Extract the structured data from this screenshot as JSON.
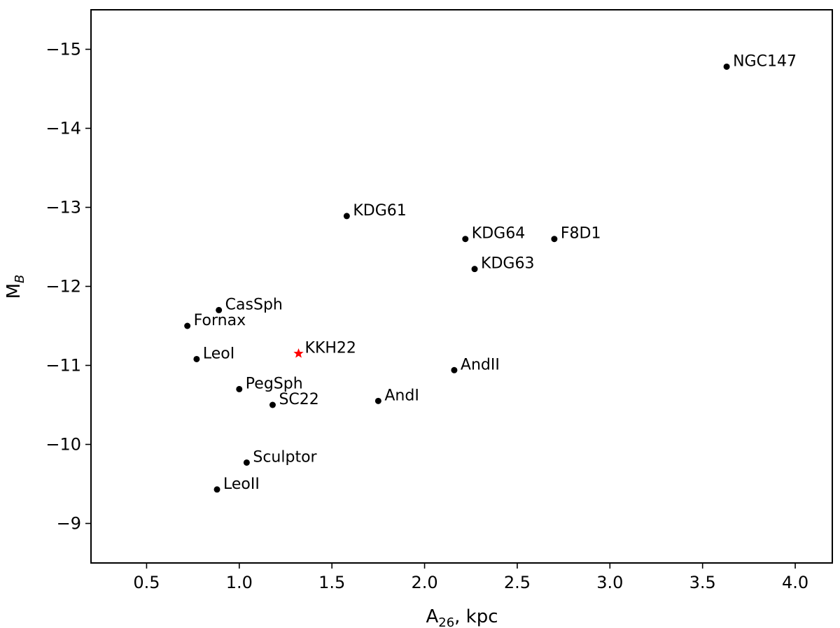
{
  "chart_data": {
    "type": "scatter",
    "xlabel": {
      "main": "A",
      "sub": "26",
      "rest": ", kpc"
    },
    "ylabel": {
      "main": "M",
      "sub": "B"
    },
    "xlim": [
      0.2,
      4.2
    ],
    "ylim": [
      -8.5,
      -15.5
    ],
    "xticks": [
      0.5,
      1.0,
      1.5,
      2.0,
      2.5,
      3.0,
      3.5,
      4.0
    ],
    "xtick_labels": [
      "0.5",
      "1.0",
      "1.5",
      "2.0",
      "2.5",
      "3.0",
      "3.5",
      "4.0"
    ],
    "yticks": [
      -15,
      -14,
      -13,
      -12,
      -11,
      -10,
      -9
    ],
    "ytick_labels": [
      "−15",
      "−14",
      "−13",
      "−12",
      "−11",
      "−10",
      "−9"
    ],
    "grid": false,
    "points": [
      {
        "label": "NGC147",
        "x": 3.63,
        "y": -14.78,
        "marker": "dot",
        "color": "#000000"
      },
      {
        "label": "KDG61",
        "x": 1.58,
        "y": -12.89,
        "marker": "dot",
        "color": "#000000"
      },
      {
        "label": "KDG64",
        "x": 2.22,
        "y": -12.6,
        "marker": "dot",
        "color": "#000000"
      },
      {
        "label": "F8D1",
        "x": 2.7,
        "y": -12.6,
        "marker": "dot",
        "color": "#000000"
      },
      {
        "label": "KDG63",
        "x": 2.27,
        "y": -12.22,
        "marker": "dot",
        "color": "#000000"
      },
      {
        "label": "CasSph",
        "x": 0.89,
        "y": -11.7,
        "marker": "dot",
        "color": "#000000"
      },
      {
        "label": "Fornax",
        "x": 0.72,
        "y": -11.5,
        "marker": "dot",
        "color": "#000000"
      },
      {
        "label": "KKH22",
        "x": 1.32,
        "y": -11.15,
        "marker": "star",
        "color": "#ff0000"
      },
      {
        "label": "LeoI",
        "x": 0.77,
        "y": -11.08,
        "marker": "dot",
        "color": "#000000"
      },
      {
        "label": "AndII",
        "x": 2.16,
        "y": -10.94,
        "marker": "dot",
        "color": "#000000"
      },
      {
        "label": "PegSph",
        "x": 1.0,
        "y": -10.7,
        "marker": "dot",
        "color": "#000000"
      },
      {
        "label": "SC22",
        "x": 1.18,
        "y": -10.5,
        "marker": "dot",
        "color": "#000000"
      },
      {
        "label": "AndI",
        "x": 1.75,
        "y": -10.55,
        "marker": "dot",
        "color": "#000000"
      },
      {
        "label": "Sculptor",
        "x": 1.04,
        "y": -9.77,
        "marker": "dot",
        "color": "#000000"
      },
      {
        "label": "LeoII",
        "x": 0.88,
        "y": -9.43,
        "marker": "dot",
        "color": "#000000"
      }
    ]
  }
}
